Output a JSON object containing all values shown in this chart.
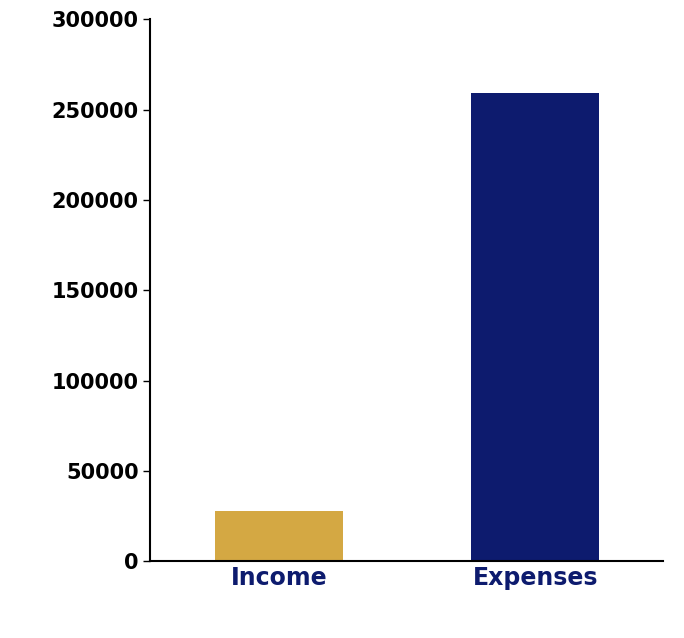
{
  "categories": [
    "Income",
    "Expenses"
  ],
  "values": [
    28000,
    259000
  ],
  "bar_colors": [
    "#D4A843",
    "#0D1B6E"
  ],
  "ylim": [
    0,
    300000
  ],
  "yticks": [
    0,
    50000,
    100000,
    150000,
    200000,
    250000,
    300000
  ],
  "background_color": "#ffffff",
  "label_fontsize": 17,
  "label_fontweight": "bold",
  "label_color": "#0D1B6E",
  "ytick_fontsize": 15,
  "ytick_fontweight": "bold",
  "bar_width": 0.5
}
